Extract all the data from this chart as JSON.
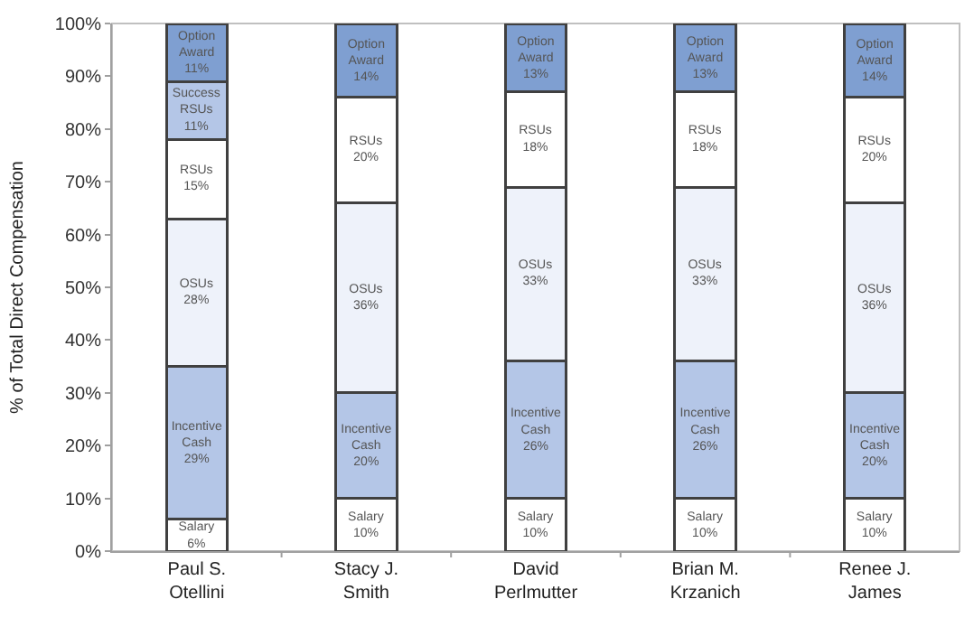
{
  "chart_data": {
    "type": "bar",
    "stacked": true,
    "ylabel": "% of Total Direct Compensation",
    "categories": [
      "Paul S.\nOtellini",
      "Stacy J.\nSmith",
      "David\nPerlmutter",
      "Brian M.\nKrzanich",
      "Renee J.\nJames"
    ],
    "series": [
      {
        "name": "Salary",
        "color": "#ffffff",
        "values": [
          6,
          10,
          10,
          10,
          10
        ],
        "value_labels": [
          "6%",
          "10%",
          "10%",
          "10%",
          "10%"
        ]
      },
      {
        "name": "Incentive Cash",
        "color": "#b4c6e7",
        "values": [
          29,
          20,
          26,
          26,
          20
        ],
        "value_labels": [
          "29%",
          "20%",
          "26%",
          "26%",
          "20%"
        ]
      },
      {
        "name": "OSUs",
        "color": "#eef2fa",
        "values": [
          28,
          36,
          33,
          33,
          36
        ],
        "value_labels": [
          "28%",
          "36%",
          "33%",
          "33%",
          "36%"
        ]
      },
      {
        "name": "RSUs",
        "color": "#ffffff",
        "values": [
          15,
          20,
          18,
          18,
          20
        ],
        "value_labels": [
          "15%",
          "20%",
          "18%",
          "18%",
          "20%"
        ]
      },
      {
        "name": "Success RSUs",
        "color": "#b4c6e7",
        "values": [
          11,
          null,
          null,
          null,
          null
        ],
        "value_labels": [
          "11%",
          null,
          null,
          null,
          null
        ]
      },
      {
        "name": "Option Award",
        "color": "#7f9fd1",
        "values": [
          11,
          14,
          13,
          13,
          14
        ],
        "value_labels": [
          "11%",
          "14%",
          "13%",
          "13%",
          "14%"
        ]
      }
    ],
    "ylim": [
      0,
      100
    ],
    "yticks": [
      {
        "value": 0,
        "label": "0%"
      },
      {
        "value": 10,
        "label": "10%"
      },
      {
        "value": 20,
        "label": "20%"
      },
      {
        "value": 30,
        "label": "30%"
      },
      {
        "value": 40,
        "label": "40%"
      },
      {
        "value": 50,
        "label": "50%"
      },
      {
        "value": 60,
        "label": "60%"
      },
      {
        "value": 70,
        "label": "70%"
      },
      {
        "value": 80,
        "label": "80%"
      },
      {
        "value": 90,
        "label": "90%"
      },
      {
        "value": 100,
        "label": "100%"
      }
    ],
    "grid": false,
    "legend": false
  }
}
